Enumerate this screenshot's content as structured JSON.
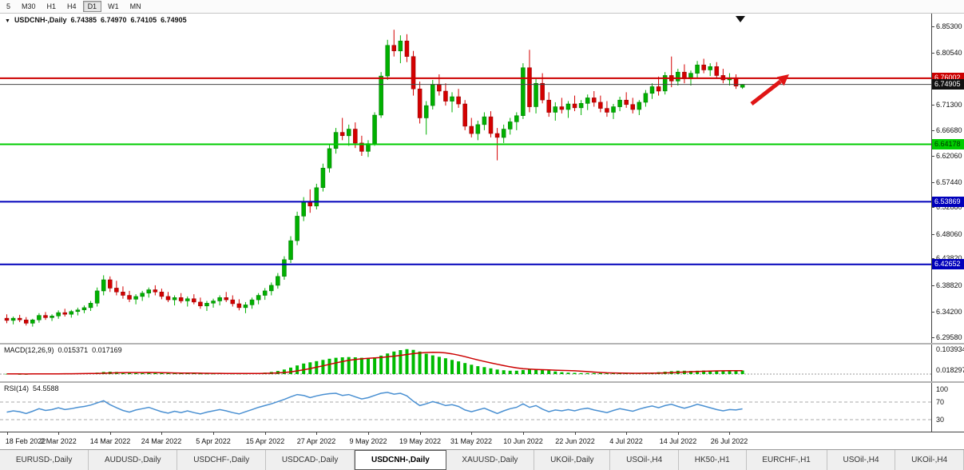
{
  "toolbar": {
    "timeframes": [
      "5",
      "M30",
      "H1",
      "H4",
      "D1",
      "W1",
      "MN"
    ],
    "active_timeframe": "D1"
  },
  "chart": {
    "title": {
      "dropdown_icon": "▼",
      "symbol": "USDCNH-,Daily",
      "open": "6.74385",
      "high": "6.74970",
      "low": "6.74105",
      "close": "6.74905"
    }
  },
  "chart_data": {
    "type": "candlestick",
    "symbol": "USDCNH-,Daily",
    "timeframe": "Daily",
    "colors": {
      "up": "#00B000",
      "up_border": "#007400",
      "down": "#D40000",
      "down_border": "#8B0000",
      "background": "#ffffff"
    },
    "price_axis": {
      "min": 6.2958,
      "max": 6.853,
      "ticks": [
        "6.85300",
        "6.80540",
        "6.71300",
        "6.66680",
        "6.62060",
        "6.57440",
        "6.52880",
        "6.48060",
        "6.43820",
        "6.38820",
        "6.34200",
        "6.29580"
      ]
    },
    "horizontal_lines": [
      {
        "price": 6.76002,
        "label": "6.76002",
        "color": "#cc0000",
        "width": 2,
        "badge_bg": "#cc0000",
        "badge_fg": "#ffffff",
        "role": "resistance"
      },
      {
        "price": 6.74905,
        "label": "6.74905",
        "color": "#444444",
        "width": 1,
        "badge_bg": "#111111",
        "badge_fg": "#ffffff",
        "role": "current-price"
      },
      {
        "price": 6.64178,
        "label": "6.64178",
        "color": "#00cc00",
        "width": 2,
        "badge_bg": "#00cc00",
        "badge_fg": "#003300",
        "role": "support"
      },
      {
        "price": 6.53869,
        "label": "6.53869",
        "color": "#0000bb",
        "width": 2,
        "badge_bg": "#0000bb",
        "badge_fg": "#ffffff",
        "role": "support"
      },
      {
        "price": 6.42652,
        "label": "6.42652",
        "color": "#0000bb",
        "width": 2,
        "badge_bg": "#0000bb",
        "badge_fg": "#ffffff",
        "role": "support"
      }
    ],
    "annotations": [
      {
        "type": "up-trend-arrow",
        "color": "#e01515"
      },
      {
        "type": "down-marker",
        "color": "#111111"
      }
    ],
    "x_labels": [
      "18 Feb 2022",
      "2 Mar 2022",
      "14 Mar 2022",
      "24 Mar 2022",
      "5 Apr 2022",
      "15 Apr 2022",
      "27 Apr 2022",
      "9 May 2022",
      "19 May 2022",
      "31 May 2022",
      "10 Jun 2022",
      "22 Jun 2022",
      "4 Jul 2022",
      "14 Jul 2022",
      "26 Jul 2022"
    ],
    "x_label_every": 8,
    "candles": [
      [
        6.33,
        6.337,
        6.321,
        6.326
      ],
      [
        6.326,
        6.333,
        6.319,
        6.33
      ],
      [
        6.33,
        6.336,
        6.323,
        6.327
      ],
      [
        6.327,
        6.332,
        6.317,
        6.321
      ],
      [
        6.321,
        6.329,
        6.315,
        6.327
      ],
      [
        6.327,
        6.339,
        6.322,
        6.335
      ],
      [
        6.335,
        6.341,
        6.327,
        6.331
      ],
      [
        6.331,
        6.337,
        6.325,
        6.334
      ],
      [
        6.334,
        6.344,
        6.329,
        6.34
      ],
      [
        6.34,
        6.347,
        6.333,
        6.337
      ],
      [
        6.337,
        6.345,
        6.331,
        6.342
      ],
      [
        6.342,
        6.349,
        6.335,
        6.345
      ],
      [
        6.345,
        6.353,
        6.339,
        6.349
      ],
      [
        6.349,
        6.361,
        6.343,
        6.357
      ],
      [
        6.357,
        6.385,
        6.351,
        6.379
      ],
      [
        6.379,
        6.407,
        6.371,
        6.399
      ],
      [
        6.399,
        6.405,
        6.377,
        6.384
      ],
      [
        6.384,
        6.397,
        6.371,
        6.377
      ],
      [
        6.377,
        6.387,
        6.365,
        6.371
      ],
      [
        6.371,
        6.379,
        6.359,
        6.364
      ],
      [
        6.364,
        6.373,
        6.355,
        6.369
      ],
      [
        6.369,
        6.379,
        6.361,
        6.375
      ],
      [
        6.375,
        6.385,
        6.367,
        6.381
      ],
      [
        6.381,
        6.389,
        6.371,
        6.377
      ],
      [
        6.377,
        6.383,
        6.364,
        6.369
      ],
      [
        6.369,
        6.377,
        6.359,
        6.363
      ],
      [
        6.363,
        6.371,
        6.353,
        6.367
      ],
      [
        6.367,
        6.375,
        6.357,
        6.361
      ],
      [
        6.361,
        6.369,
        6.351,
        6.365
      ],
      [
        6.365,
        6.373,
        6.355,
        6.359
      ],
      [
        6.359,
        6.367,
        6.347,
        6.352
      ],
      [
        6.352,
        6.361,
        6.343,
        6.357
      ],
      [
        6.357,
        6.365,
        6.349,
        6.361
      ],
      [
        6.361,
        6.371,
        6.353,
        6.367
      ],
      [
        6.367,
        6.377,
        6.359,
        6.363
      ],
      [
        6.363,
        6.371,
        6.351,
        6.356
      ],
      [
        6.356,
        6.364,
        6.344,
        6.349
      ],
      [
        6.349,
        6.359,
        6.339,
        6.354
      ],
      [
        6.354,
        6.367,
        6.347,
        6.363
      ],
      [
        6.363,
        6.375,
        6.355,
        6.371
      ],
      [
        6.371,
        6.384,
        6.363,
        6.379
      ],
      [
        6.379,
        6.394,
        6.371,
        6.389
      ],
      [
        6.389,
        6.411,
        6.383,
        6.405
      ],
      [
        6.405,
        6.441,
        6.399,
        6.435
      ],
      [
        6.435,
        6.477,
        6.429,
        6.469
      ],
      [
        6.469,
        6.521,
        6.461,
        6.513
      ],
      [
        6.513,
        6.547,
        6.504,
        6.539
      ],
      [
        6.539,
        6.561,
        6.519,
        6.531
      ],
      [
        6.531,
        6.571,
        6.525,
        6.564
      ],
      [
        6.564,
        6.607,
        6.557,
        6.599
      ],
      [
        6.599,
        6.641,
        6.591,
        6.634
      ],
      [
        6.634,
        6.671,
        6.625,
        6.663
      ],
      [
        6.663,
        6.689,
        6.649,
        6.657
      ],
      [
        6.657,
        6.677,
        6.639,
        6.669
      ],
      [
        6.669,
        6.681,
        6.635,
        6.644
      ],
      [
        6.644,
        6.657,
        6.621,
        6.629
      ],
      [
        6.629,
        6.649,
        6.619,
        6.643
      ],
      [
        6.643,
        6.699,
        6.639,
        6.694
      ],
      [
        6.694,
        6.771,
        6.689,
        6.764
      ],
      [
        6.764,
        6.829,
        6.757,
        6.819
      ],
      [
        6.819,
        6.847,
        6.799,
        6.809
      ],
      [
        6.809,
        6.837,
        6.787,
        6.827
      ],
      [
        6.827,
        6.839,
        6.789,
        6.799
      ],
      [
        6.799,
        6.809,
        6.729,
        6.741
      ],
      [
        6.741,
        6.754,
        6.679,
        6.689
      ],
      [
        6.689,
        6.719,
        6.659,
        6.711
      ],
      [
        6.711,
        6.757,
        6.704,
        6.749
      ],
      [
        6.749,
        6.767,
        6.729,
        6.737
      ],
      [
        6.737,
        6.751,
        6.711,
        6.719
      ],
      [
        6.719,
        6.735,
        6.699,
        6.727
      ],
      [
        6.727,
        6.741,
        6.707,
        6.714
      ],
      [
        6.714,
        6.721,
        6.667,
        6.674
      ],
      [
        6.674,
        6.689,
        6.654,
        6.661
      ],
      [
        6.661,
        6.684,
        6.649,
        6.677
      ],
      [
        6.677,
        6.699,
        6.667,
        6.691
      ],
      [
        6.691,
        6.701,
        6.654,
        6.661
      ],
      [
        6.661,
        6.671,
        6.613,
        6.654
      ],
      [
        6.654,
        6.677,
        6.644,
        6.669
      ],
      [
        6.669,
        6.689,
        6.659,
        6.682
      ],
      [
        6.682,
        6.699,
        6.667,
        6.693
      ],
      [
        6.693,
        6.787,
        6.687,
        6.779
      ],
      [
        6.779,
        6.811,
        6.699,
        6.709
      ],
      [
        6.709,
        6.759,
        6.697,
        6.751
      ],
      [
        6.751,
        6.769,
        6.715,
        6.721
      ],
      [
        6.721,
        6.735,
        6.691,
        6.699
      ],
      [
        6.699,
        6.717,
        6.684,
        6.709
      ],
      [
        6.709,
        6.725,
        6.697,
        6.704
      ],
      [
        6.704,
        6.719,
        6.689,
        6.714
      ],
      [
        6.714,
        6.729,
        6.701,
        6.707
      ],
      [
        6.707,
        6.721,
        6.694,
        6.715
      ],
      [
        6.715,
        6.731,
        6.703,
        6.725
      ],
      [
        6.725,
        6.737,
        6.709,
        6.717
      ],
      [
        6.717,
        6.729,
        6.699,
        6.706
      ],
      [
        6.706,
        6.719,
        6.691,
        6.699
      ],
      [
        6.699,
        6.714,
        6.687,
        6.709
      ],
      [
        6.709,
        6.727,
        6.701,
        6.721
      ],
      [
        6.721,
        6.735,
        6.707,
        6.713
      ],
      [
        6.713,
        6.725,
        6.697,
        6.704
      ],
      [
        6.704,
        6.721,
        6.694,
        6.717
      ],
      [
        6.717,
        6.739,
        6.709,
        6.733
      ],
      [
        6.733,
        6.751,
        6.723,
        6.745
      ],
      [
        6.745,
        6.763,
        6.729,
        6.737
      ],
      [
        6.737,
        6.771,
        6.731,
        6.765
      ],
      [
        6.765,
        6.799,
        6.744,
        6.755
      ],
      [
        6.755,
        6.777,
        6.747,
        6.771
      ],
      [
        6.771,
        6.785,
        6.751,
        6.759
      ],
      [
        6.759,
        6.774,
        6.747,
        6.769
      ],
      [
        6.769,
        6.791,
        6.761,
        6.784
      ],
      [
        6.784,
        6.795,
        6.769,
        6.775
      ],
      [
        6.775,
        6.787,
        6.764,
        6.781
      ],
      [
        6.781,
        6.789,
        6.759,
        6.765
      ],
      [
        6.765,
        6.777,
        6.751,
        6.757
      ],
      [
        6.757,
        6.769,
        6.747,
        6.761
      ],
      [
        6.761,
        6.767,
        6.741,
        6.746
      ],
      [
        6.74385,
        6.7497,
        6.74105,
        6.74905
      ]
    ],
    "macd": {
      "label": "MACD(12,26,9)",
      "value_main": "0.015371",
      "value_signal": "0.017169",
      "axis_labels": [
        "0.103934",
        "0.018297"
      ],
      "histogram_color": "#00bb00",
      "signal_color": "#cc0000",
      "histogram": [
        0.001,
        0.001,
        0.0,
        0.0,
        0.001,
        0.002,
        0.002,
        0.001,
        0.002,
        0.002,
        0.002,
        0.003,
        0.003,
        0.004,
        0.006,
        0.009,
        0.01,
        0.009,
        0.007,
        0.005,
        0.004,
        0.004,
        0.005,
        0.005,
        0.005,
        0.004,
        0.004,
        0.003,
        0.003,
        0.003,
        0.002,
        0.002,
        0.002,
        0.003,
        0.003,
        0.002,
        0.002,
        0.002,
        0.003,
        0.004,
        0.006,
        0.009,
        0.013,
        0.019,
        0.027,
        0.036,
        0.044,
        0.049,
        0.054,
        0.059,
        0.064,
        0.068,
        0.07,
        0.071,
        0.07,
        0.068,
        0.067,
        0.07,
        0.077,
        0.086,
        0.094,
        0.1,
        0.104,
        0.101,
        0.094,
        0.085,
        0.078,
        0.072,
        0.066,
        0.059,
        0.053,
        0.046,
        0.039,
        0.033,
        0.029,
        0.024,
        0.019,
        0.016,
        0.014,
        0.014,
        0.017,
        0.02,
        0.021,
        0.019,
        0.015,
        0.011,
        0.008,
        0.006,
        0.005,
        0.004,
        0.004,
        0.004,
        0.004,
        0.003,
        0.003,
        0.003,
        0.003,
        0.003,
        0.004,
        0.005,
        0.006,
        0.008,
        0.01,
        0.012,
        0.014,
        0.014,
        0.013,
        0.014,
        0.015,
        0.015,
        0.014,
        0.013,
        0.013,
        0.014,
        0.015
      ]
    },
    "rsi": {
      "label": "RSI(14)",
      "value": "54.5588",
      "levels": [
        "100",
        "70",
        "30"
      ],
      "line_color": "#4a90d2",
      "values": [
        47,
        50,
        48,
        44,
        49,
        55,
        51,
        53,
        57,
        53,
        55,
        58,
        60,
        63,
        68,
        73,
        64,
        57,
        51,
        47,
        52,
        55,
        58,
        53,
        48,
        45,
        49,
        46,
        50,
        46,
        43,
        47,
        50,
        53,
        50,
        46,
        43,
        48,
        53,
        58,
        62,
        66,
        71,
        76,
        82,
        87,
        85,
        80,
        84,
        87,
        89,
        90,
        85,
        87,
        82,
        77,
        80,
        85,
        90,
        92,
        88,
        90,
        84,
        72,
        62,
        66,
        71,
        67,
        62,
        64,
        60,
        52,
        48,
        52,
        56,
        50,
        44,
        50,
        55,
        58,
        66,
        58,
        62,
        54,
        48,
        52,
        50,
        53,
        50,
        54,
        56,
        52,
        49,
        46,
        51,
        55,
        52,
        49,
        54,
        58,
        61,
        57,
        62,
        65,
        60,
        56,
        60,
        65,
        61,
        57,
        53,
        50,
        53,
        52,
        54.5588
      ]
    }
  },
  "tabs": {
    "active_index": 4,
    "items": [
      "EURUSD-,Daily",
      "AUDUSD-,Daily",
      "USDCHF-,Daily",
      "USDCAD-,Daily",
      "USDCNH-,Daily",
      "XAUUSD-,Daily",
      "UKOil-,Daily",
      "USOil-,H4",
      "HK50-,H1",
      "EURCHF-,H1",
      "USOil-,H4",
      "UKOil-,H4"
    ]
  }
}
